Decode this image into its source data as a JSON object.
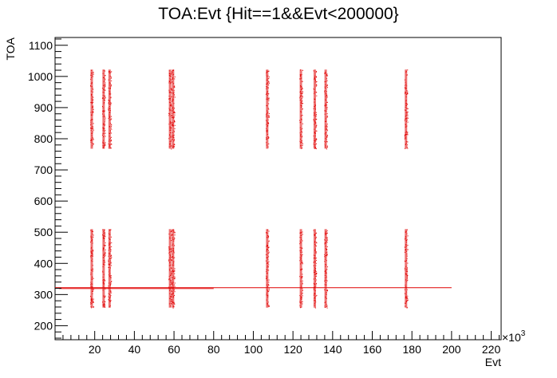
{
  "chart_data": {
    "type": "scatter",
    "title": "TOA:Evt {Hit==1&&Evt<200000}",
    "xlabel": "Evt",
    "ylabel": "TOA",
    "x_multiplier_base": "×10",
    "x_multiplier_exp": "3",
    "xlim": [
      0,
      225
    ],
    "ylim": [
      155,
      1125
    ],
    "x_ticks": [
      20,
      40,
      60,
      80,
      100,
      120,
      140,
      160,
      180,
      200,
      220
    ],
    "x_tick_labels": [
      "20",
      "40",
      "60",
      "80",
      "100",
      "120",
      "140",
      "160",
      "180",
      "200",
      "220"
    ],
    "y_ticks": [
      200,
      300,
      400,
      500,
      600,
      700,
      800,
      900,
      1000,
      1100
    ],
    "y_tick_labels": [
      "200",
      "300",
      "400",
      "500",
      "600",
      "700",
      "800",
      "900",
      "1000",
      "1100"
    ],
    "marker_color": "#e00000",
    "series": [
      {
        "clusters": [
          {
            "x": 18.5,
            "y_bands": [
              [
                258,
                510
              ],
              [
                768,
                1022
              ]
            ]
          },
          {
            "x": 24.5,
            "y_bands": [
              [
                258,
                510
              ],
              [
                768,
                1022
              ]
            ]
          },
          {
            "x": 27.5,
            "y_bands": [
              [
                258,
                510
              ],
              [
                768,
                1022
              ]
            ]
          },
          {
            "x": 58.0,
            "y_bands": [
              [
                258,
                510
              ],
              [
                768,
                1022
              ]
            ]
          },
          {
            "x": 59.5,
            "y_bands": [
              [
                258,
                510
              ],
              [
                768,
                1022
              ]
            ]
          },
          {
            "x": 107.0,
            "y_bands": [
              [
                258,
                510
              ],
              [
                768,
                1022
              ]
            ]
          },
          {
            "x": 124.0,
            "y_bands": [
              [
                258,
                510
              ],
              [
                768,
                1022
              ]
            ]
          },
          {
            "x": 131.0,
            "y_bands": [
              [
                258,
                510
              ],
              [
                768,
                1022
              ]
            ]
          },
          {
            "x": 136.5,
            "y_bands": [
              [
                258,
                510
              ],
              [
                768,
                1022
              ]
            ]
          },
          {
            "x": 177.0,
            "y_bands": [
              [
                258,
                510
              ],
              [
                768,
                1022
              ]
            ]
          }
        ],
        "baseline": {
          "x_start": 0,
          "x_end": 200,
          "y": 322
        }
      }
    ]
  }
}
